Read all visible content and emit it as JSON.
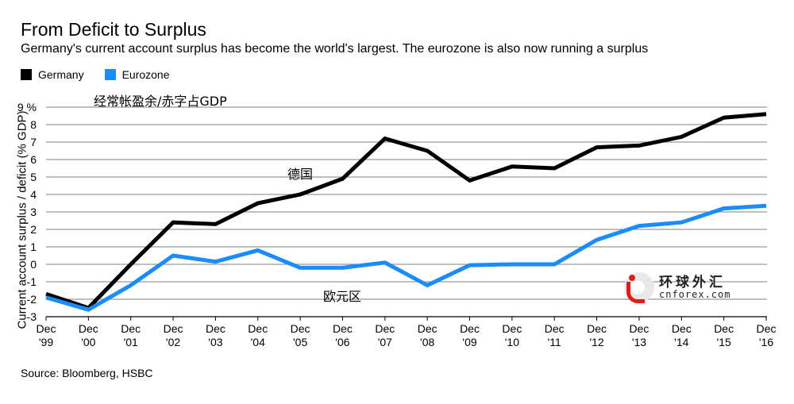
{
  "chart_data": {
    "type": "line",
    "title": "From Deficit to Surplus",
    "subtitle": "Germany's current account surplus has become the world's largest. The eurozone is also now running a surplus",
    "ylabel": "Current account surplus / deficit (% GDP)",
    "xlabel": "",
    "ylim": [
      -3,
      9
    ],
    "yticks": [
      -3,
      -2,
      -1,
      0,
      1,
      2,
      3,
      4,
      5,
      6,
      7,
      8,
      9
    ],
    "ytick_labels": [
      "-3",
      "-2",
      "-1",
      "0",
      "1",
      "2",
      "3",
      "4",
      "5",
      "6",
      "7",
      "8",
      "9 %"
    ],
    "categories": [
      "Dec\n'99",
      "Dec\n'00",
      "Dec\n'01",
      "Dec\n'02",
      "Dec\n'03",
      "Dec\n'04",
      "Dec\n'05",
      "Dec\n'06",
      "Dec\n'07",
      "Dec\n'08",
      "Dec\n'09",
      "Dec\n'10",
      "Dec\n'11",
      "Dec\n'12",
      "Dec\n'13",
      "Dec\n'14",
      "Dec\n'15",
      "Dec\n'16"
    ],
    "series": [
      {
        "name": "Germany",
        "color": "#000000",
        "values": [
          -1.7,
          -2.5,
          0.0,
          2.4,
          2.3,
          3.5,
          4.0,
          4.9,
          7.2,
          6.5,
          4.8,
          5.6,
          5.5,
          6.7,
          6.8,
          7.3,
          8.4,
          8.6
        ]
      },
      {
        "name": "Eurozone",
        "color": "#1a8cff",
        "values": [
          -1.9,
          -2.6,
          -1.2,
          0.5,
          0.15,
          0.8,
          -0.2,
          -0.2,
          0.1,
          -1.2,
          -0.05,
          0.0,
          0.0,
          1.4,
          2.2,
          2.4,
          3.2,
          3.35
        ]
      }
    ],
    "legend_position": "top-left",
    "grid": true
  },
  "annotations": {
    "chinese_title": "经常帐盈余/赤字占GDP",
    "germany_cn": "德国",
    "eurozone_cn": "欧元区"
  },
  "source": "Source: Bloomberg, HSBC",
  "watermark": {
    "cn": "环球外汇",
    "en": "cnforex.com"
  }
}
